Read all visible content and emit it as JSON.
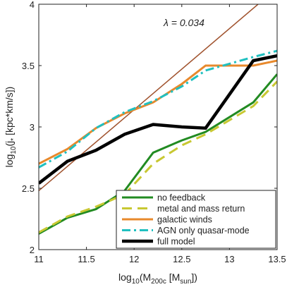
{
  "chart_data": {
    "type": "line",
    "xlabel_main": "log",
    "xlabel_sub": "10",
    "xlabel_rest": "(M",
    "xlabel_sub2": "200c",
    "xlabel_rest2": " [M",
    "xlabel_sub3": "sun",
    "xlabel_end": "])",
    "ylabel_main": "log",
    "ylabel_sub": "10",
    "ylabel_rest": "(j",
    "ylabel_sub2": "*",
    "ylabel_end": " [kpc*km/s])",
    "xlim": [
      11,
      13.5
    ],
    "ylim": [
      2,
      4
    ],
    "xticks": [
      "11",
      "11.5",
      "12",
      "12.5",
      "13",
      "13.5"
    ],
    "yticks": [
      "2",
      "2.5",
      "3",
      "3.5",
      "4"
    ],
    "annotation": {
      "text": "λ = 0.034",
      "color": "#a0522d"
    },
    "reference_line": {
      "x": [
        11,
        13.3
      ],
      "y": [
        2.48,
        4.0
      ],
      "color": "#a0522d"
    },
    "series": [
      {
        "name": "no feedback",
        "color": "#228b22",
        "style": "solid",
        "x": [
          11,
          11.3,
          11.6,
          11.9,
          12.2,
          12.5,
          12.75,
          13.25,
          13.5
        ],
        "y": [
          2.13,
          2.26,
          2.33,
          2.48,
          2.79,
          2.89,
          2.96,
          3.2,
          3.43
        ]
      },
      {
        "name": "metal and mass return",
        "color": "#c8c832",
        "style": "dashed",
        "x": [
          11,
          11.3,
          11.6,
          11.9,
          12.2,
          12.5,
          12.75,
          13.25,
          13.5
        ],
        "y": [
          2.14,
          2.27,
          2.35,
          2.45,
          2.7,
          2.85,
          2.94,
          3.17,
          3.37
        ]
      },
      {
        "name": "galactic winds",
        "color": "#e8892c",
        "style": "solid",
        "x": [
          11,
          11.3,
          11.6,
          11.9,
          12.2,
          12.5,
          12.75,
          13.25,
          13.5
        ],
        "y": [
          2.7,
          2.82,
          2.99,
          3.11,
          3.2,
          3.35,
          3.5,
          3.5,
          3.54
        ]
      },
      {
        "name": "AGN only quasar-mode",
        "color": "#20c0c0",
        "style": "dashdot",
        "x": [
          11,
          11.3,
          11.6,
          11.9,
          12.2,
          12.5,
          12.75,
          13.25,
          13.5
        ],
        "y": [
          2.67,
          2.8,
          2.99,
          3.12,
          3.21,
          3.33,
          3.46,
          3.57,
          3.62
        ]
      },
      {
        "name": "full model",
        "color": "#000000",
        "style": "solid",
        "x": [
          11,
          11.3,
          11.6,
          11.9,
          12.2,
          12.5,
          12.75,
          13.25,
          13.5
        ],
        "y": [
          2.54,
          2.72,
          2.81,
          2.94,
          3.02,
          3.0,
          2.99,
          3.54,
          3.58
        ]
      }
    ],
    "legend_position": "bottom-right",
    "grid": false
  }
}
